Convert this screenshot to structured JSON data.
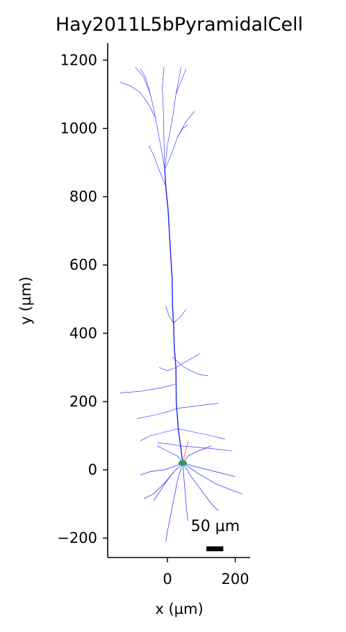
{
  "chart_data": {
    "type": "morphology",
    "title": "Hay2011L5bPyramidalCell",
    "xlabel": "x (µm)",
    "ylabel": "y (µm)",
    "xlim": [
      -175,
      245
    ],
    "ylim": [
      -255,
      1250
    ],
    "xticks": [
      0,
      200
    ],
    "yticks": [
      -200,
      0,
      200,
      400,
      600,
      800,
      1000,
      1200
    ],
    "xtick_labels": [
      "0",
      "200"
    ],
    "ytick_labels": [
      "−200",
      "0",
      "200",
      "400",
      "600",
      "800",
      "1000",
      "1200"
    ],
    "grid": false,
    "scale_bar": {
      "label": "50 µm",
      "length": 50
    },
    "colors": {
      "dendrite": "#1f1fff",
      "axon": "#ff4040",
      "soma": "#2e9e4a"
    },
    "soma": {
      "x": 45,
      "y": 20
    },
    "apical_trunk": [
      [
        45,
        20
      ],
      [
        40,
        60
      ],
      [
        32,
        120
      ],
      [
        26,
        200
      ],
      [
        25,
        300
      ],
      [
        20,
        360
      ],
      [
        18,
        430
      ],
      [
        15,
        480
      ],
      [
        14,
        560
      ],
      [
        10,
        620
      ],
      [
        6,
        690
      ],
      [
        2,
        760
      ],
      [
        -5,
        830
      ],
      [
        -8,
        880
      ]
    ],
    "apical_tuft": [
      [
        [
          -8,
          880
        ],
        [
          -20,
          950
        ],
        [
          -35,
          1030
        ],
        [
          -50,
          1100
        ],
        [
          -70,
          1150
        ],
        [
          -95,
          1180
        ]
      ],
      [
        [
          -35,
          1030
        ],
        [
          -55,
          1070
        ],
        [
          -80,
          1105
        ],
        [
          -110,
          1125
        ],
        [
          -140,
          1135
        ]
      ],
      [
        [
          -50,
          1100
        ],
        [
          -65,
          1150
        ],
        [
          -80,
          1175
        ]
      ],
      [
        [
          -8,
          880
        ],
        [
          -10,
          960
        ],
        [
          -12,
          1050
        ],
        [
          -15,
          1120
        ],
        [
          -10,
          1180
        ]
      ],
      [
        [
          -8,
          880
        ],
        [
          0,
          950
        ],
        [
          15,
          1030
        ],
        [
          25,
          1100
        ],
        [
          35,
          1150
        ],
        [
          40,
          1180
        ]
      ],
      [
        [
          25,
          1100
        ],
        [
          45,
          1150
        ],
        [
          55,
          1175
        ]
      ],
      [
        [
          -8,
          880
        ],
        [
          10,
          920
        ],
        [
          30,
          975
        ],
        [
          55,
          1020
        ],
        [
          80,
          1050
        ]
      ],
      [
        [
          30,
          975
        ],
        [
          45,
          1000
        ],
        [
          60,
          1010
        ]
      ],
      [
        [
          -5,
          830
        ],
        [
          -25,
          880
        ],
        [
          -40,
          920
        ],
        [
          -55,
          950
        ]
      ]
    ],
    "oblique_dendrites": [
      [
        [
          18,
          430
        ],
        [
          5,
          450
        ],
        [
          -5,
          480
        ]
      ],
      [
        [
          18,
          430
        ],
        [
          40,
          450
        ],
        [
          55,
          470
        ]
      ],
      [
        [
          15,
          330
        ],
        [
          50,
          300
        ],
        [
          90,
          280
        ],
        [
          120,
          275
        ]
      ],
      [
        [
          22,
          250
        ],
        [
          -20,
          240
        ],
        [
          -80,
          230
        ],
        [
          -140,
          225
        ]
      ],
      [
        [
          28,
          180
        ],
        [
          70,
          185
        ],
        [
          110,
          190
        ],
        [
          150,
          195
        ]
      ],
      [
        [
          28,
          180
        ],
        [
          0,
          170
        ],
        [
          -40,
          160
        ],
        [
          -90,
          150
        ]
      ],
      [
        [
          32,
          120
        ],
        [
          80,
          110
        ],
        [
          130,
          100
        ],
        [
          170,
          90
        ]
      ],
      [
        [
          32,
          120
        ],
        [
          -10,
          110
        ],
        [
          -50,
          100
        ],
        [
          -80,
          85
        ]
      ],
      [
        [
          38,
          70
        ],
        [
          100,
          65
        ],
        [
          150,
          60
        ],
        [
          190,
          55
        ]
      ],
      [
        [
          38,
          70
        ],
        [
          10,
          75
        ],
        [
          -30,
          80
        ]
      ],
      [
        [
          25,
          300
        ],
        [
          60,
          320
        ],
        [
          95,
          340
        ]
      ],
      [
        [
          25,
          300
        ],
        [
          0,
          290
        ],
        [
          -25,
          300
        ]
      ]
    ],
    "basal_dendrites": [
      [
        [
          45,
          20
        ],
        [
          20,
          10
        ],
        [
          -10,
          0
        ],
        [
          -50,
          -5
        ],
        [
          -80,
          -15
        ]
      ],
      [
        [
          45,
          20
        ],
        [
          20,
          -5
        ],
        [
          0,
          -30
        ],
        [
          -20,
          -60
        ],
        [
          -40,
          -90
        ]
      ],
      [
        [
          45,
          20
        ],
        [
          30,
          -30
        ],
        [
          20,
          -80
        ],
        [
          10,
          -130
        ],
        [
          0,
          -180
        ],
        [
          -5,
          -210
        ]
      ],
      [
        [
          45,
          20
        ],
        [
          50,
          -40
        ],
        [
          55,
          -100
        ],
        [
          60,
          -150
        ]
      ],
      [
        [
          45,
          20
        ],
        [
          70,
          -20
        ],
        [
          100,
          -60
        ],
        [
          130,
          -100
        ],
        [
          150,
          -120
        ]
      ],
      [
        [
          45,
          20
        ],
        [
          80,
          10
        ],
        [
          120,
          0
        ],
        [
          160,
          -10
        ],
        [
          200,
          -20
        ]
      ],
      [
        [
          45,
          20
        ],
        [
          60,
          40
        ],
        [
          90,
          55
        ],
        [
          130,
          70
        ]
      ],
      [
        [
          45,
          20
        ],
        [
          30,
          40
        ],
        [
          0,
          55
        ],
        [
          -30,
          70
        ]
      ],
      [
        [
          20,
          -5
        ],
        [
          -10,
          -40
        ],
        [
          -40,
          -70
        ],
        [
          -70,
          -85
        ]
      ],
      [
        [
          45,
          20
        ],
        [
          90,
          -10
        ],
        [
          140,
          -40
        ],
        [
          190,
          -60
        ],
        [
          220,
          -70
        ]
      ]
    ],
    "axon": [
      [
        45,
        20
      ],
      [
        52,
        50
      ],
      [
        58,
        70
      ],
      [
        62,
        85
      ]
    ]
  }
}
